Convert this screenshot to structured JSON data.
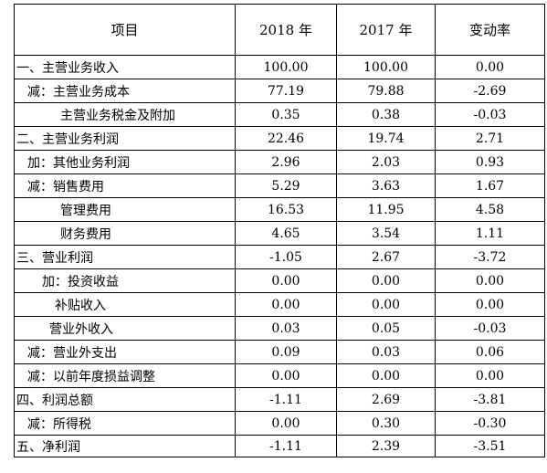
{
  "table": {
    "headers": [
      "项目",
      "2018 年",
      "2017 年",
      "变动率"
    ],
    "rows": [
      {
        "label": "一、主营业务收入",
        "v2018": "100.00",
        "v2017": "100.00",
        "rate": "0.00"
      },
      {
        "label": "减：主营业务成本",
        "v2018": "77.19",
        "v2017": "79.88",
        "rate": "-2.69"
      },
      {
        "label": "主营业务税金及附加",
        "v2018": "0.35",
        "v2017": "0.38",
        "rate": "-0.03"
      },
      {
        "label": "二、主营业务利润",
        "v2018": "22.46",
        "v2017": "19.74",
        "rate": "2.71"
      },
      {
        "label": "加：其他业务利润",
        "v2018": "2.96",
        "v2017": "2.03",
        "rate": "0.93"
      },
      {
        "label": "减：销售费用",
        "v2018": "5.29",
        "v2017": "3.63",
        "rate": "1.67"
      },
      {
        "label": "管理费用",
        "v2018": "16.53",
        "v2017": "11.95",
        "rate": "4.58"
      },
      {
        "label": "财务费用",
        "v2018": "4.65",
        "v2017": "3.54",
        "rate": "1.11"
      },
      {
        "label": "三、营业利润",
        "v2018": "-1.05",
        "v2017": "2.67",
        "rate": "-3.72"
      },
      {
        "label": "加：投资收益",
        "v2018": "0.00",
        "v2017": "0.00",
        "rate": "0.00"
      },
      {
        "label": "补贴收入",
        "v2018": "0.00",
        "v2017": "0.00",
        "rate": "0.00"
      },
      {
        "label": "营业外收入",
        "v2018": "0.03",
        "v2017": "0.05",
        "rate": "-0.03"
      },
      {
        "label": "减：营业外支出",
        "v2018": "0.09",
        "v2017": "0.03",
        "rate": "0.06"
      },
      {
        "label": "减：以前年度损益调整",
        "v2018": "0.00",
        "v2017": "0.00",
        "rate": "0.00"
      },
      {
        "label": "四、利润总额",
        "v2018": "-1.11",
        "v2017": "2.69",
        "rate": "-3.81"
      },
      {
        "label": "减：所得税",
        "v2018": "0.00",
        "v2017": "0.30",
        "rate": "-0.30"
      },
      {
        "label": "五、净利润",
        "v2018": "-1.11",
        "v2017": "2.39",
        "rate": "-3.51"
      }
    ]
  }
}
